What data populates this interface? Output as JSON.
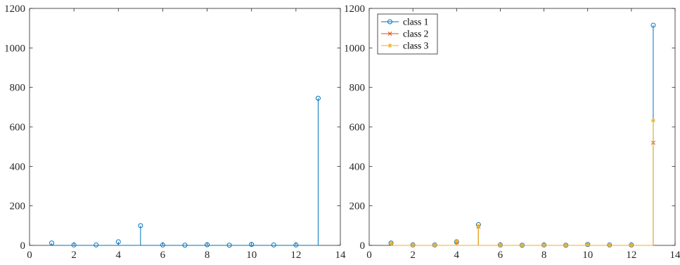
{
  "chart_data": [
    {
      "type": "stem",
      "xlim": [
        0,
        14
      ],
      "ylim": [
        0,
        1200
      ],
      "xticks": [
        "0",
        "2",
        "4",
        "6",
        "8",
        "10",
        "12",
        "14"
      ],
      "yticks": [
        "0",
        "200",
        "400",
        "600",
        "800",
        "1000",
        "1200"
      ],
      "grid": false,
      "legend": null,
      "series": [
        {
          "marker": "circle",
          "color": "#0072BD",
          "x": [
            1,
            2,
            3,
            4,
            5,
            6,
            7,
            8,
            9,
            10,
            11,
            12,
            13
          ],
          "values": [
            12,
            2,
            2,
            18,
            100,
            2,
            1,
            3,
            1,
            5,
            2,
            2,
            745
          ]
        }
      ]
    },
    {
      "type": "stem",
      "xlim": [
        0,
        14
      ],
      "ylim": [
        0,
        1200
      ],
      "xticks": [
        "0",
        "2",
        "4",
        "6",
        "8",
        "10",
        "12",
        "14"
      ],
      "yticks": [
        "0",
        "200",
        "400",
        "600",
        "800",
        "1000",
        "1200"
      ],
      "grid": false,
      "legend": "top-left",
      "series": [
        {
          "name": "class 1",
          "marker": "circle",
          "color": "#0072BD",
          "x": [
            1,
            2,
            3,
            4,
            5,
            6,
            7,
            8,
            9,
            10,
            11,
            12,
            13
          ],
          "values": [
            12,
            2,
            2,
            18,
            105,
            2,
            1,
            2,
            1,
            5,
            2,
            2,
            1115
          ]
        },
        {
          "name": "class 2",
          "marker": "x",
          "color": "#D95319",
          "x": [
            1,
            2,
            3,
            4,
            5,
            6,
            7,
            8,
            9,
            10,
            11,
            12,
            13
          ],
          "values": [
            10,
            2,
            2,
            15,
            95,
            2,
            1,
            2,
            1,
            4,
            2,
            2,
            520
          ]
        },
        {
          "name": "class 3",
          "marker": "asterisk",
          "color": "#EDB120",
          "x": [
            1,
            2,
            3,
            4,
            5,
            6,
            7,
            8,
            9,
            10,
            11,
            12,
            13
          ],
          "values": [
            11,
            2,
            2,
            22,
            98,
            2,
            1,
            2,
            1,
            5,
            2,
            2,
            632
          ]
        }
      ]
    }
  ]
}
